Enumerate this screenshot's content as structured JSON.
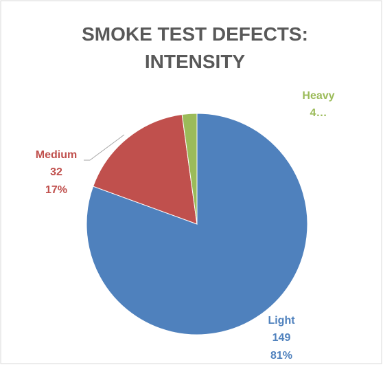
{
  "chart_data": {
    "type": "pie",
    "title": "SMOKE TEST DEFECTS: INTENSITY",
    "categories": [
      "Light",
      "Medium",
      "Heavy"
    ],
    "values": [
      149,
      32,
      4
    ],
    "value_labels": [
      "149",
      "32",
      "4…"
    ],
    "percent_labels": [
      "81%",
      "17%",
      null
    ],
    "colors": [
      "#4f81bd",
      "#c0504d",
      "#9bbb59"
    ]
  }
}
